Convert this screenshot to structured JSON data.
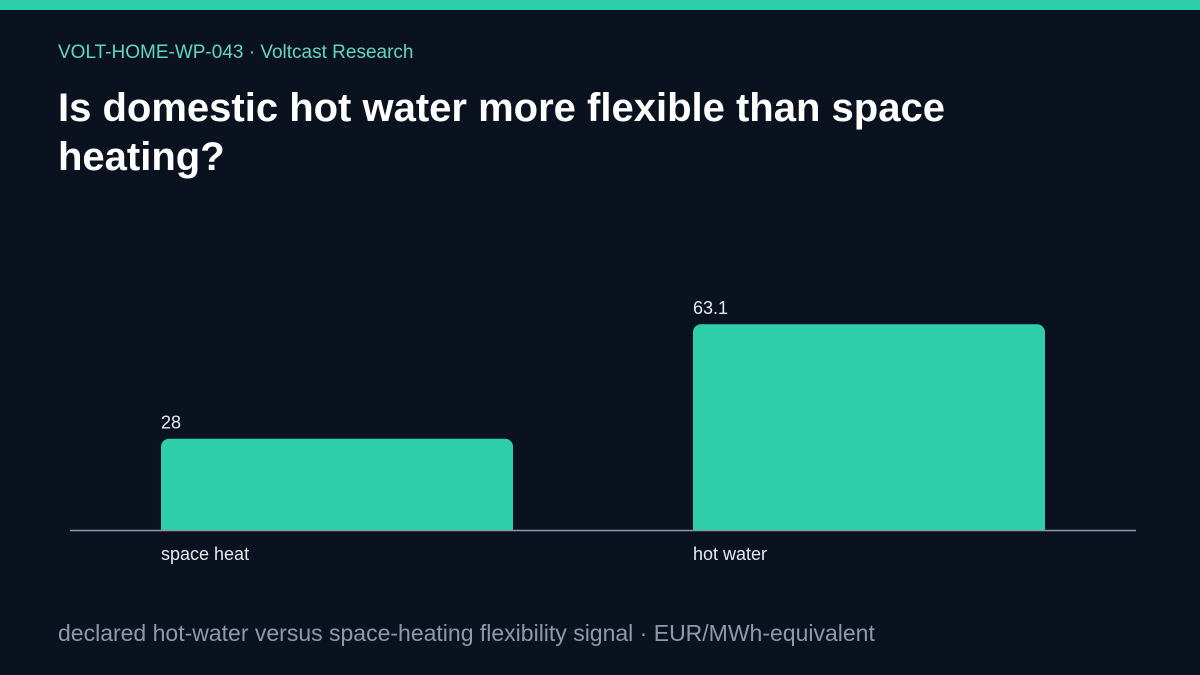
{
  "header": {
    "kicker": "VOLT-HOME-WP-043 · Voltcast Research",
    "title": "Is domestic hot water more flexible than space heating?"
  },
  "footer": {
    "caption": "declared hot-water versus space-heating flexibility signal · EUR/MWh-equivalent"
  },
  "colors": {
    "background": "#0a1220",
    "accent": "#2fcfac",
    "kicker": "#5fd8be",
    "axis": "#8d9aac",
    "label": "#e6ebf2"
  },
  "chart_data": {
    "type": "bar",
    "categories": [
      "space heat",
      "hot water"
    ],
    "values": [
      28,
      63.1
    ],
    "value_labels": [
      "28",
      "63.1"
    ],
    "ylim": [
      0,
      70
    ],
    "grid": false,
    "legend": "none"
  }
}
